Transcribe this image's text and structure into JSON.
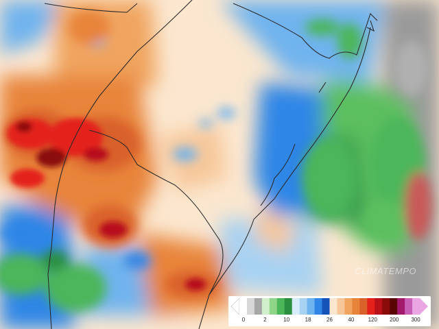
{
  "map": {
    "type": "precipitation-anomaly-map",
    "region": "Rio Grande do Sul and surroundings",
    "colors": {
      "heavy_dry": "#8b0a0a",
      "dry": "#e4221c",
      "orange": "#e8843a",
      "light_orange": "#f7c79a",
      "neutral": "#fbe7cf",
      "light_blue": "#a7d2f2",
      "blue": "#2f86e6",
      "green": "#5bbf5e",
      "dark_green": "#2e8b3f",
      "gray": "#9a9a9a"
    }
  },
  "watermark": {
    "text": "CLIMATEMPO"
  },
  "legend": {
    "ticks": [
      "0",
      "2",
      "10",
      "18",
      "26",
      "40",
      "120",
      "200",
      "300"
    ],
    "colors": [
      "#ffffff",
      "#d8d8d8",
      "#a6a6a6",
      "#cfeec9",
      "#8fd58a",
      "#4cb65a",
      "#2a8f3f",
      "#d7ecfb",
      "#a7d2f2",
      "#6fb3ee",
      "#2f86e6",
      "#1653b8",
      "#fbe7cf",
      "#f7c79a",
      "#f0a45e",
      "#e8843a",
      "#d9612a",
      "#e4221c",
      "#b8111a",
      "#8b0a0a",
      "#5a0505",
      "#a2196e",
      "#c85fb7",
      "#e9a6e3"
    ]
  }
}
